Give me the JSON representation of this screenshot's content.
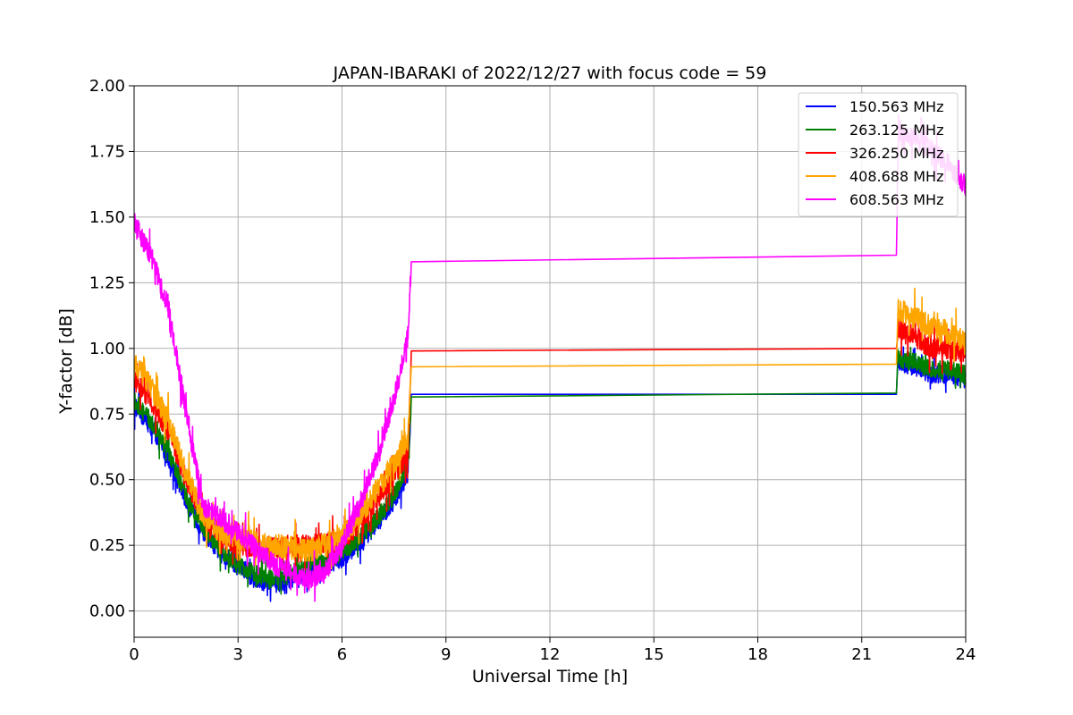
{
  "chart_data": {
    "type": "line",
    "title": "JAPAN-IBARAKI of 2022/12/27 with focus code = 59",
    "xlabel": "Universal Time [h]",
    "ylabel": "Y-factor [dB]",
    "xlim": [
      0,
      24
    ],
    "ylim": [
      -0.1,
      2.0
    ],
    "xticks": [
      0,
      3,
      6,
      9,
      12,
      15,
      18,
      21,
      24
    ],
    "yticks": [
      0.0,
      0.25,
      0.5,
      0.75,
      1.0,
      1.25,
      1.5,
      1.75,
      2.0
    ],
    "ytick_labels": [
      "0.00",
      "0.25",
      "0.50",
      "0.75",
      "1.00",
      "1.25",
      "1.50",
      "1.75",
      "2.00"
    ],
    "grid": true,
    "legend_position": "top-right",
    "series": [
      {
        "name": "150.563 MHz",
        "color": "#0000ff",
        "noise": 0.035,
        "x": [
          0,
          0.5,
          1,
          1.5,
          2,
          2.5,
          3,
          3.5,
          4,
          4.5,
          5,
          5.5,
          6,
          6.5,
          7,
          7.5,
          7.9,
          8.0,
          22.0,
          22.05,
          22.5,
          23,
          23.5,
          24
        ],
        "y": [
          0.78,
          0.7,
          0.58,
          0.42,
          0.3,
          0.22,
          0.17,
          0.12,
          0.1,
          0.12,
          0.15,
          0.17,
          0.2,
          0.26,
          0.33,
          0.42,
          0.52,
          0.825,
          0.825,
          0.95,
          0.93,
          0.9,
          0.9,
          0.88
        ]
      },
      {
        "name": "263.125 MHz",
        "color": "#008000",
        "noise": 0.035,
        "x": [
          0,
          0.5,
          1,
          1.5,
          2,
          2.5,
          3,
          3.5,
          4,
          4.5,
          5,
          5.5,
          6,
          6.5,
          7,
          7.5,
          7.9,
          8.0,
          22.0,
          22.05,
          22.5,
          23,
          23.5,
          24
        ],
        "y": [
          0.8,
          0.72,
          0.6,
          0.44,
          0.32,
          0.23,
          0.18,
          0.14,
          0.12,
          0.14,
          0.17,
          0.19,
          0.22,
          0.28,
          0.35,
          0.44,
          0.56,
          0.815,
          0.83,
          0.96,
          0.95,
          0.92,
          0.92,
          0.9
        ]
      },
      {
        "name": "326.250 MHz",
        "color": "#ff0000",
        "noise": 0.04,
        "x": [
          0,
          0.5,
          1,
          1.5,
          2,
          2.5,
          3,
          3.5,
          4,
          4.5,
          5,
          5.5,
          6,
          6.5,
          7,
          7.5,
          7.9,
          8.0,
          22.0,
          22.05,
          22.5,
          23,
          23.5,
          24
        ],
        "y": [
          0.88,
          0.8,
          0.68,
          0.5,
          0.36,
          0.28,
          0.25,
          0.24,
          0.24,
          0.25,
          0.25,
          0.26,
          0.27,
          0.33,
          0.42,
          0.52,
          0.6,
          0.99,
          1.0,
          1.08,
          1.05,
          1.0,
          1.0,
          0.98
        ]
      },
      {
        "name": "408.688 MHz",
        "color": "#ffa500",
        "noise": 0.045,
        "x": [
          0,
          0.5,
          1,
          1.5,
          2,
          2.5,
          3,
          3.5,
          4,
          4.5,
          5,
          5.5,
          6,
          6.5,
          7,
          7.5,
          7.9,
          8.0,
          22.0,
          22.05,
          22.5,
          23,
          23.5,
          24
        ],
        "y": [
          0.95,
          0.85,
          0.72,
          0.52,
          0.36,
          0.3,
          0.28,
          0.26,
          0.25,
          0.24,
          0.23,
          0.25,
          0.28,
          0.36,
          0.46,
          0.56,
          0.66,
          0.93,
          0.94,
          1.15,
          1.12,
          1.08,
          1.06,
          1.02
        ]
      },
      {
        "name": "608.563 MHz",
        "color": "#ff00ff",
        "noise": 0.04,
        "x": [
          0,
          0.5,
          1,
          1.5,
          2,
          2.5,
          3,
          3.5,
          4,
          4.5,
          5,
          5.5,
          6,
          6.5,
          7,
          7.5,
          7.9,
          8.0,
          22.0,
          22.05,
          22.5,
          23,
          23.5,
          24
        ],
        "y": [
          1.48,
          1.35,
          1.15,
          0.75,
          0.4,
          0.35,
          0.3,
          0.24,
          0.18,
          0.15,
          0.12,
          0.15,
          0.25,
          0.4,
          0.58,
          0.8,
          1.05,
          1.33,
          1.355,
          1.82,
          1.8,
          1.76,
          1.7,
          1.62
        ]
      }
    ]
  }
}
